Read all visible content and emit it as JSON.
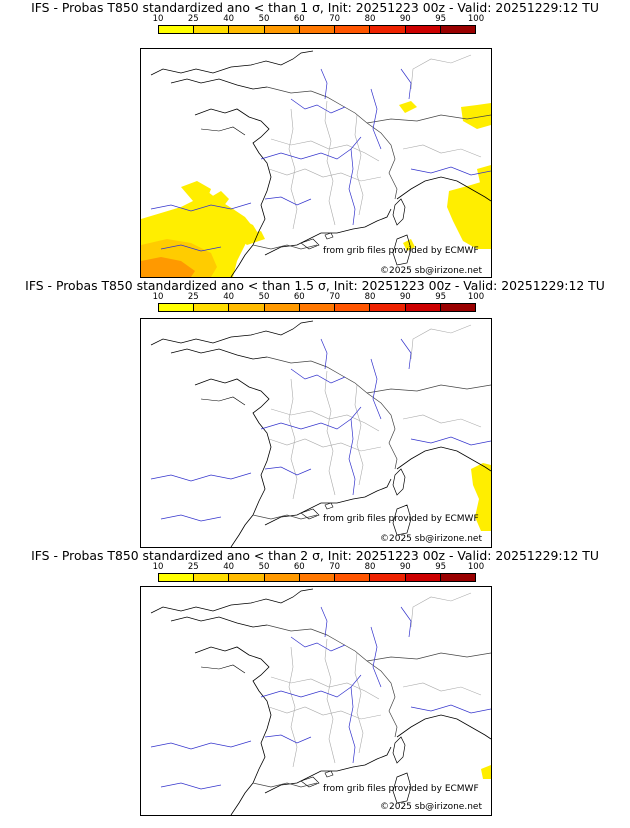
{
  "colorbar": {
    "ticks": [
      "10",
      "25",
      "40",
      "50",
      "60",
      "70",
      "80",
      "90",
      "95",
      "100"
    ],
    "colors": [
      "#ffff00",
      "#ffdd00",
      "#ffbb00",
      "#ff9900",
      "#ff7700",
      "#ff5500",
      "#ee2200",
      "#cc0000",
      "#990000",
      "#660000"
    ]
  },
  "panels": [
    {
      "title": "IFS - Probas T850  standardized ano < than 1 σ, Init: 20251223 00z - Valid: 20251229:12 TU",
      "credit_source": "from grib files provided by ECMWF",
      "credit_copyright": "©2025 sb@irizone.net"
    },
    {
      "title": "IFS - Probas T850  standardized ano < than 1.5 σ, Init: 20251223 00z - Valid: 20251229:12 TU",
      "credit_source": "from grib files provided by ECMWF",
      "credit_copyright": "©2025 sb@irizone.net"
    },
    {
      "title": "IFS - Probas T850  standardized ano < than 2 σ, Init: 20251223 00z - Valid: 20251229:12 TU",
      "credit_source": "from grib files provided by ECMWF",
      "credit_copyright": "©2025 sb@irizone.net"
    }
  ]
}
